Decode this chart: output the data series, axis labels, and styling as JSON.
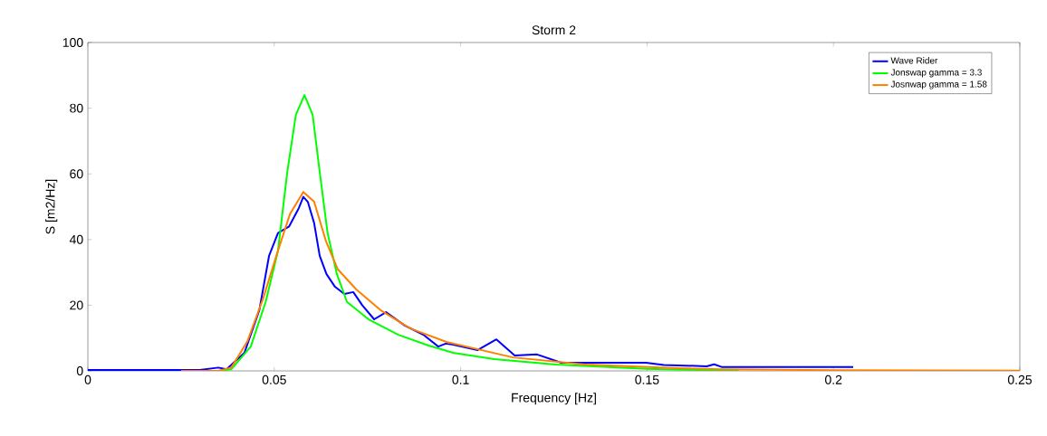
{
  "chart_data": {
    "type": "line",
    "title": "Storm 2",
    "xlabel": "Frequency [Hz]",
    "ylabel": "S [m2/Hz]",
    "xlim": [
      0,
      0.25
    ],
    "ylim": [
      0,
      100
    ],
    "xticks": [
      0,
      0.05,
      0.1,
      0.15,
      0.2,
      0.25
    ],
    "yticks": [
      0,
      20,
      40,
      60,
      80,
      100
    ],
    "grid": false,
    "legend": "top right",
    "marker": "none",
    "line_style": "solid",
    "series": [
      {
        "name": "Wave Rider",
        "color": "#0000ff",
        "x": [
          0,
          0.03,
          0.035,
          0.0372,
          0.042,
          0.046,
          0.0486,
          0.051,
          0.054,
          0.0566,
          0.0578,
          0.059,
          0.0607,
          0.0622,
          0.064,
          0.0663,
          0.0688,
          0.0712,
          0.0736,
          0.0768,
          0.08,
          0.085,
          0.09,
          0.094,
          0.096,
          0.098,
          0.1045,
          0.1096,
          0.1145,
          0.1205,
          0.127,
          0.133,
          0.1497,
          0.1545,
          0.166,
          0.168,
          0.17,
          0.18,
          0.2053
        ],
        "values": [
          0.3,
          0.3,
          1,
          0.5,
          5.5,
          18.5,
          35,
          42,
          44,
          49.6,
          53,
          51.5,
          45,
          35,
          29.5,
          25.6,
          23.4,
          24,
          20,
          15.7,
          17.9,
          13.8,
          11,
          7.4,
          8.3,
          8,
          6.3,
          9.6,
          4.7,
          5,
          2.5,
          2.5,
          2.5,
          1.8,
          1.4,
          2,
          1.2,
          1.2,
          1.2
        ]
      },
      {
        "name": "Jonswap gamma = 3.3",
        "color": "#00ff00",
        "x": [
          0.025,
          0.035,
          0.0385,
          0.0437,
          0.0477,
          0.051,
          0.0535,
          0.0558,
          0.0581,
          0.0603,
          0.0622,
          0.0643,
          0.0668,
          0.0695,
          0.0753,
          0.0833,
          0.0914,
          0.098,
          0.109,
          0.1255,
          0.15,
          0.1745
        ],
        "values": [
          0,
          0,
          0.5,
          7.4,
          21,
          36.6,
          60.6,
          78,
          84,
          78,
          60.6,
          42,
          29.5,
          21,
          15.7,
          11,
          7.7,
          5.5,
          3.6,
          1.9,
          0.6,
          0
        ]
      },
      {
        "name": "Josnwap gamma = 1.58",
        "color": "#ff8000",
        "x": [
          0.025,
          0.035,
          0.0385,
          0.0428,
          0.047,
          0.051,
          0.0542,
          0.0578,
          0.0607,
          0.0639,
          0.067,
          0.072,
          0.0785,
          0.0865,
          0.0962,
          0.114,
          0.1336,
          0.158,
          0.17,
          0.2,
          0.25
        ],
        "values": [
          0,
          0,
          1,
          9,
          22,
          36.6,
          47.7,
          54.5,
          51.5,
          39.4,
          31,
          24.8,
          18.5,
          12.9,
          8.8,
          4.1,
          1.9,
          0.8,
          0.5,
          0.2,
          0.1
        ]
      }
    ]
  }
}
